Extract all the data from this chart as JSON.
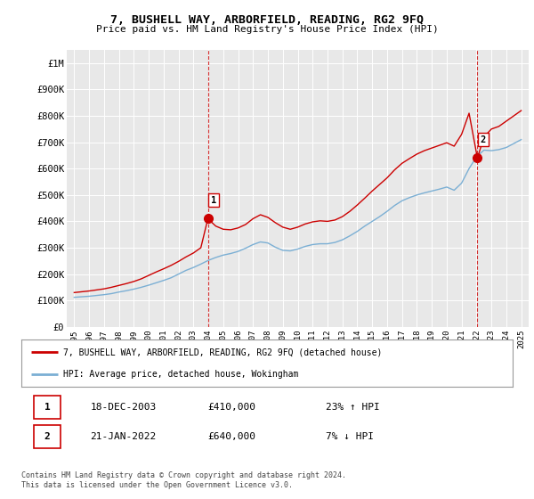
{
  "title": "7, BUSHELL WAY, ARBORFIELD, READING, RG2 9FQ",
  "subtitle": "Price paid vs. HM Land Registry's House Price Index (HPI)",
  "ylabel_ticks": [
    "£0",
    "£100K",
    "£200K",
    "£300K",
    "£400K",
    "£500K",
    "£600K",
    "£700K",
    "£800K",
    "£900K",
    "£1M"
  ],
  "ytick_values": [
    0,
    100000,
    200000,
    300000,
    400000,
    500000,
    600000,
    700000,
    800000,
    900000,
    1000000
  ],
  "xlim": [
    1994.5,
    2025.5
  ],
  "ylim": [
    0,
    1050000
  ],
  "transaction1": {
    "date_year": 2003.97,
    "price": 410000,
    "label": "1"
  },
  "transaction2": {
    "date_year": 2022.06,
    "price": 640000,
    "label": "2"
  },
  "legend_line1": "7, BUSHELL WAY, ARBORFIELD, READING, RG2 9FQ (detached house)",
  "legend_line2": "HPI: Average price, detached house, Wokingham",
  "table_row1": [
    "1",
    "18-DEC-2003",
    "£410,000",
    "23% ↑ HPI"
  ],
  "table_row2": [
    "2",
    "21-JAN-2022",
    "£640,000",
    "7% ↓ HPI"
  ],
  "footer": "Contains HM Land Registry data © Crown copyright and database right 2024.\nThis data is licensed under the Open Government Licence v3.0.",
  "line_color_red": "#cc0000",
  "line_color_blue": "#7bafd4",
  "dashed_color": "#cc0000",
  "background_color": "#ffffff",
  "plot_bg_color": "#e8e8e8",
  "hpi_years": [
    1995.0,
    1995.5,
    1996.0,
    1996.5,
    1997.0,
    1997.5,
    1998.0,
    1998.5,
    1999.0,
    1999.5,
    2000.0,
    2000.5,
    2001.0,
    2001.5,
    2002.0,
    2002.5,
    2003.0,
    2003.5,
    2004.0,
    2004.5,
    2005.0,
    2005.5,
    2006.0,
    2006.5,
    2007.0,
    2007.5,
    2008.0,
    2008.5,
    2009.0,
    2009.5,
    2010.0,
    2010.5,
    2011.0,
    2011.5,
    2012.0,
    2012.5,
    2013.0,
    2013.5,
    2014.0,
    2014.5,
    2015.0,
    2015.5,
    2016.0,
    2016.5,
    2017.0,
    2017.5,
    2018.0,
    2018.5,
    2019.0,
    2019.5,
    2020.0,
    2020.5,
    2021.0,
    2021.5,
    2022.0,
    2022.5,
    2023.0,
    2023.5,
    2024.0,
    2024.5,
    2025.0
  ],
  "hpi_values": [
    112000,
    114000,
    116000,
    119000,
    122000,
    126000,
    132000,
    137000,
    143000,
    150000,
    158000,
    167000,
    176000,
    186000,
    200000,
    214000,
    225000,
    238000,
    252000,
    263000,
    272000,
    278000,
    286000,
    298000,
    312000,
    322000,
    318000,
    302000,
    290000,
    288000,
    295000,
    305000,
    312000,
    315000,
    315000,
    320000,
    330000,
    345000,
    362000,
    382000,
    400000,
    418000,
    438000,
    460000,
    478000,
    490000,
    500000,
    508000,
    515000,
    522000,
    530000,
    518000,
    545000,
    600000,
    645000,
    670000,
    668000,
    672000,
    680000,
    695000,
    710000
  ],
  "property_years": [
    1995.0,
    1995.5,
    1996.0,
    1996.5,
    1997.0,
    1997.5,
    1998.0,
    1998.5,
    1999.0,
    1999.5,
    2000.0,
    2000.5,
    2001.0,
    2001.5,
    2002.0,
    2002.5,
    2003.0,
    2003.5,
    2003.97,
    2004.5,
    2005.0,
    2005.5,
    2006.0,
    2006.5,
    2007.0,
    2007.5,
    2008.0,
    2008.5,
    2009.0,
    2009.5,
    2010.0,
    2010.5,
    2011.0,
    2011.5,
    2012.0,
    2012.5,
    2013.0,
    2013.5,
    2014.0,
    2014.5,
    2015.0,
    2015.5,
    2016.0,
    2016.5,
    2017.0,
    2017.5,
    2018.0,
    2018.5,
    2019.0,
    2019.5,
    2020.0,
    2020.5,
    2021.0,
    2021.5,
    2022.06,
    2022.5,
    2023.0,
    2023.5,
    2024.0,
    2024.5,
    2025.0
  ],
  "property_values": [
    130000,
    133000,
    136000,
    140000,
    144000,
    150000,
    157000,
    164000,
    172000,
    182000,
    195000,
    208000,
    220000,
    233000,
    248000,
    265000,
    280000,
    300000,
    410000,
    382000,
    370000,
    368000,
    375000,
    388000,
    410000,
    425000,
    415000,
    395000,
    378000,
    370000,
    378000,
    390000,
    398000,
    402000,
    400000,
    405000,
    418000,
    438000,
    462000,
    488000,
    515000,
    540000,
    565000,
    595000,
    620000,
    638000,
    655000,
    668000,
    678000,
    688000,
    698000,
    685000,
    730000,
    810000,
    640000,
    720000,
    750000,
    760000,
    780000,
    800000,
    820000
  ],
  "xtick_years": [
    1995,
    1996,
    1997,
    1998,
    1999,
    2000,
    2001,
    2002,
    2003,
    2004,
    2005,
    2006,
    2007,
    2008,
    2009,
    2010,
    2011,
    2012,
    2013,
    2014,
    2015,
    2016,
    2017,
    2018,
    2019,
    2020,
    2021,
    2022,
    2023,
    2024,
    2025
  ]
}
